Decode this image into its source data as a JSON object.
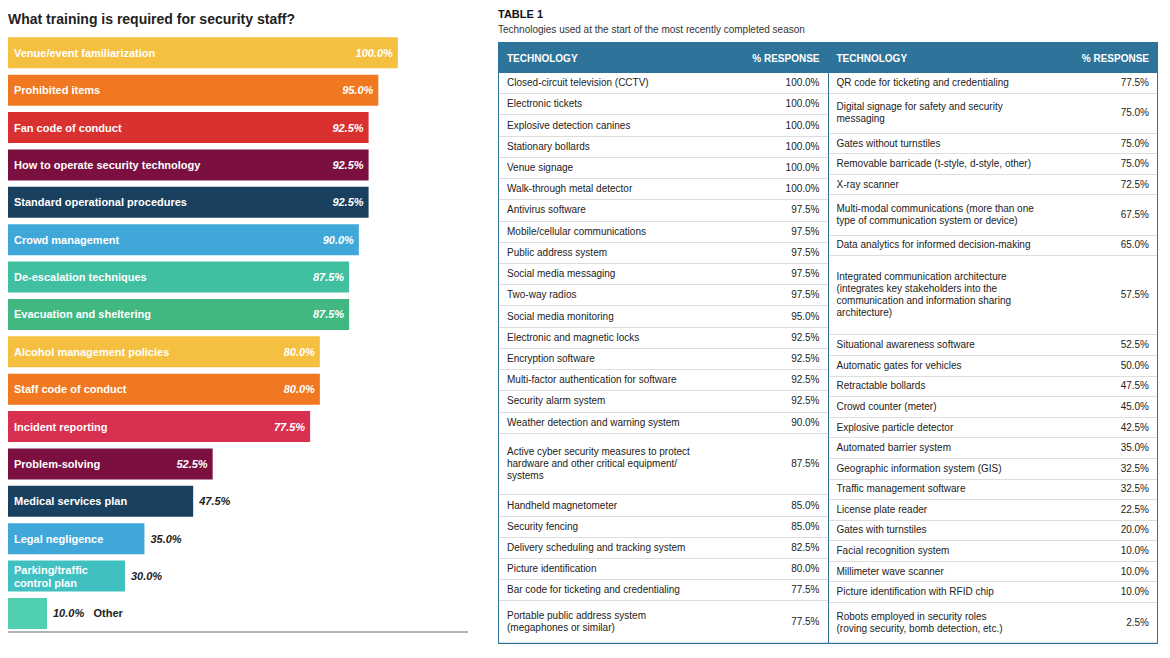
{
  "chart_data": [
    {
      "type": "bar",
      "title": "What training is required for security staff?",
      "orientation": "horizontal",
      "categories": [
        "Venue/event familiarization",
        "Prohibited items",
        "Fan code of conduct",
        "How to operate security technology",
        "Standard operational procedures",
        "Crowd management",
        "De-escalation techniques",
        "Evacuation and sheltering",
        "Alcohol management policies",
        "Staff code of conduct",
        "Incident reporting",
        "Problem-solving",
        "Medical services plan",
        "Legal negligence",
        "Parking/traffic\ncontrol plan",
        "Other"
      ],
      "values": [
        100.0,
        95.0,
        92.5,
        92.5,
        92.5,
        90.0,
        87.5,
        87.5,
        80.0,
        80.0,
        77.5,
        52.5,
        47.5,
        35.0,
        30.0,
        10.0
      ],
      "value_labels": [
        "100.0%",
        "95.0%",
        "92.5%",
        "92.5%",
        "92.5%",
        "90.0%",
        "87.5%",
        "87.5%",
        "80.0%",
        "80.0%",
        "77.5%",
        "52.5%",
        "47.5%",
        "35.0%",
        "30.0%",
        "10.0%"
      ],
      "colors": [
        "#F5C040",
        "#F07820",
        "#D93030",
        "#7B1040",
        "#1A4060",
        "#40A8D8",
        "#40C0A0",
        "#40B880",
        "#F5C040",
        "#F07820",
        "#D83050",
        "#7B1040",
        "#1A4060",
        "#40A8D8",
        "#40C0C0",
        "#50D0B0"
      ],
      "xlim": [
        0,
        118
      ],
      "data_labels": true,
      "tick_labels": false,
      "grid": false
    },
    {
      "type": "table",
      "title": "TABLE 1",
      "subtitle": "Technologies used at the start of the most recently completed season",
      "color": "#2E7399",
      "columns": [
        "TECHNOLOGY",
        "% RESPONSE"
      ],
      "categories": [
        "Closed-circuit television (CCTV)",
        "Electronic tickets",
        "Explosive detection canines",
        "Stationary bollards",
        "Venue signage",
        "Walk-through metal detector",
        "Antivirus software",
        "Mobile/cellular communications",
        "Public address system",
        "Social media messaging",
        "Two-way radios",
        "Social media monitoring",
        "Electronic and magnetic locks",
        "Encryption software",
        "Multi-factor authentication for software",
        "Security alarm system",
        "Weather detection and warning system",
        "Active cyber security measures to protect\nhardware and other critical equipment/\nsystems",
        "Handheld magnetometer",
        "Security fencing",
        "Delivery scheduling and tracking system",
        "Picture identification",
        "Bar code for ticketing and credentialing",
        "Portable public address system\n(megaphones or similar)"
      ],
      "values": [
        100.0,
        100.0,
        100.0,
        100.0,
        100.0,
        100.0,
        97.5,
        97.5,
        97.5,
        97.5,
        97.5,
        95.0,
        92.5,
        92.5,
        92.5,
        92.5,
        90.0,
        87.5,
        85.0,
        85.0,
        82.5,
        80.0,
        77.5,
        77.5
      ],
      "value_labels": [
        "100.0%",
        "100.0%",
        "100.0%",
        "100.0%",
        "100.0%",
        "100.0%",
        "97.5%",
        "97.5%",
        "97.5%",
        "97.5%",
        "97.5%",
        "95.0%",
        "92.5%",
        "92.5%",
        "92.5%",
        "92.5%",
        "90.0%",
        "87.5%",
        "85.0%",
        "85.0%",
        "82.5%",
        "80.0%",
        "77.5%",
        "77.5%"
      ]
    },
    {
      "type": "table",
      "color": "#2E7399",
      "columns": [
        "TECHNOLOGY",
        "% RESPONSE"
      ],
      "categories": [
        "QR code for ticketing and credentialing",
        "Digital signage for safety and security\nmessaging",
        "Gates without turnstiles",
        "Removable barricade (t-style, d-style, other)",
        "X-ray scanner",
        "Multi-modal communications (more than one\ntype of communication system or device)",
        "Data analytics for informed decision-making",
        "Integrated communication architecture\n(integrates key stakeholders into the\ncommunication and information sharing\narchitecture)",
        "Situational awareness software",
        "Automatic gates for vehicles",
        "Retractable bollards",
        "Crowd counter (meter)",
        "Explosive particle detector",
        "Automated barrier system",
        "Geographic information system (GIS)",
        "Traffic management software",
        "License plate reader",
        "Gates with turnstiles",
        "Facial recognition system",
        "Millimeter wave scanner",
        "Picture identification with RFID chip",
        "Robots employed in security roles\n(roving security, bomb detection, etc.)"
      ],
      "values": [
        77.5,
        75.0,
        75.0,
        75.0,
        72.5,
        67.5,
        65.0,
        57.5,
        52.5,
        50.0,
        47.5,
        45.0,
        42.5,
        35.0,
        32.5,
        32.5,
        22.5,
        20.0,
        10.0,
        10.0,
        10.0,
        2.5
      ],
      "value_labels": [
        "77.5%",
        "75.0%",
        "75.0%",
        "75.0%",
        "72.5%",
        "67.5%",
        "65.0%",
        "57.5%",
        "52.5%",
        "50.0%",
        "47.5%",
        "45.0%",
        "42.5%",
        "35.0%",
        "32.5%",
        "32.5%",
        "22.5%",
        "20.0%",
        "10.0%",
        "10.0%",
        "10.0%",
        "2.5%"
      ]
    }
  ]
}
